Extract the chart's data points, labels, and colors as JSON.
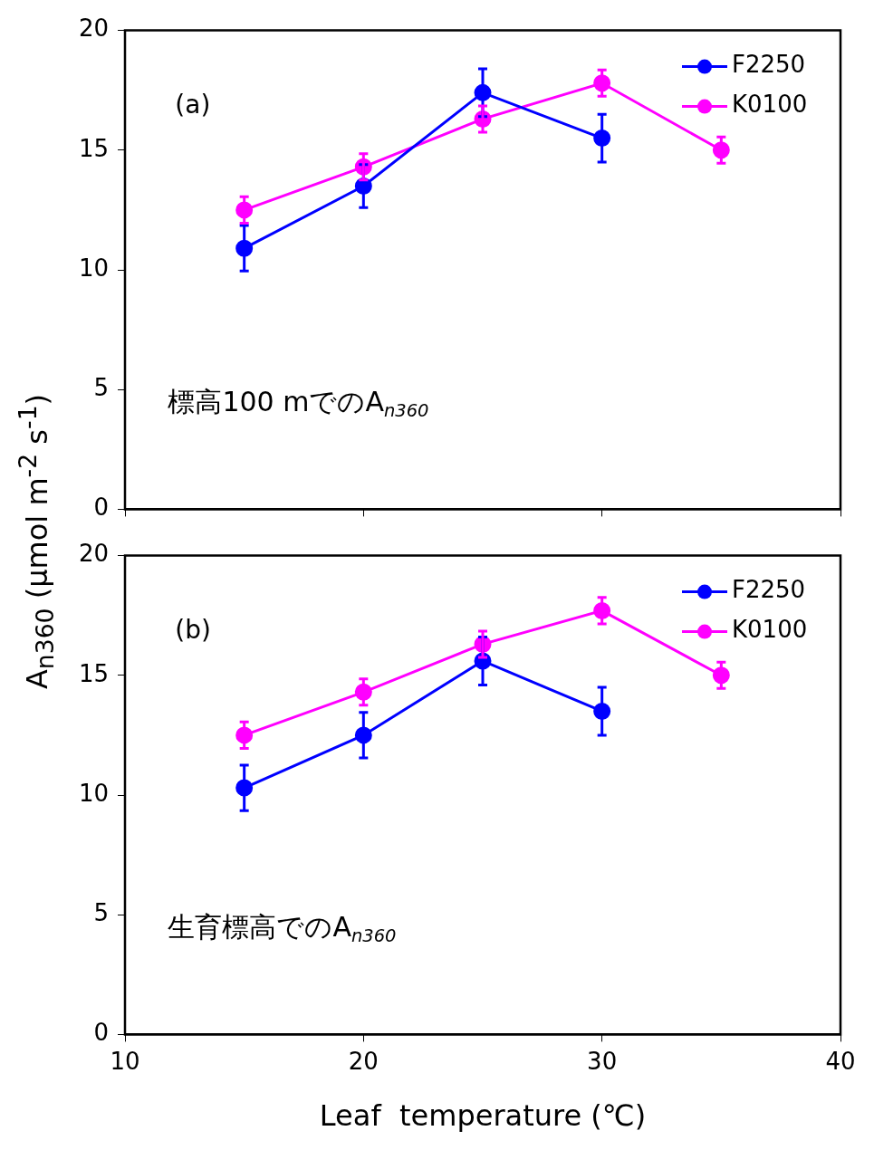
{
  "chart_data": [
    {
      "type": "line",
      "ylabel": "A$_{n360}$ (μmol m$^{-2}$ s$^{-1}$)",
      "annotations": [
        "(a)",
        "標高100 mでのA$_{n360}$"
      ],
      "xlim": [
        10,
        40
      ],
      "xticks": [
        10,
        20,
        30,
        40
      ],
      "ylim": [
        0,
        20
      ],
      "yticks": [
        0,
        5,
        10,
        15,
        20
      ],
      "tick_labels": "y",
      "legend": "top right",
      "marker": "circle",
      "grid": false,
      "series": [
        {
          "name": "F2250",
          "color": "#0000ff",
          "x": [
            15,
            20,
            25,
            30
          ],
          "values": [
            10.9,
            13.5,
            17.4,
            15.5
          ],
          "errors": [
            0.95,
            0.9,
            1.0,
            1.0
          ]
        },
        {
          "name": "K0100",
          "color": "#ff00ff",
          "x": [
            15,
            20,
            25,
            30,
            35
          ],
          "values": [
            12.5,
            14.3,
            16.3,
            17.8,
            15.0
          ],
          "errors": [
            0.55,
            0.55,
            0.55,
            0.55,
            0.55
          ]
        }
      ]
    },
    {
      "type": "line",
      "xlabel": "Leaf  temperature (℃)",
      "annotations": [
        "(b)",
        "生育標高でのA$_{n360}$"
      ],
      "xlim": [
        10,
        40
      ],
      "xticks": [
        10,
        20,
        30,
        40
      ],
      "ylim": [
        0,
        20
      ],
      "yticks": [
        0,
        5,
        10,
        15,
        20
      ],
      "legend": "top right",
      "marker": "circle",
      "grid": false,
      "series": [
        {
          "name": "F2250",
          "color": "#0000ff",
          "x": [
            15,
            20,
            25,
            30
          ],
          "values": [
            10.3,
            12.5,
            15.6,
            13.5
          ],
          "errors": [
            0.95,
            0.95,
            1.0,
            1.0
          ]
        },
        {
          "name": "K0100",
          "color": "#ff00ff",
          "x": [
            15,
            20,
            25,
            30,
            35
          ],
          "values": [
            12.5,
            14.3,
            16.3,
            17.7,
            15.0
          ],
          "errors": [
            0.55,
            0.55,
            0.55,
            0.55,
            0.55
          ]
        }
      ]
    }
  ]
}
